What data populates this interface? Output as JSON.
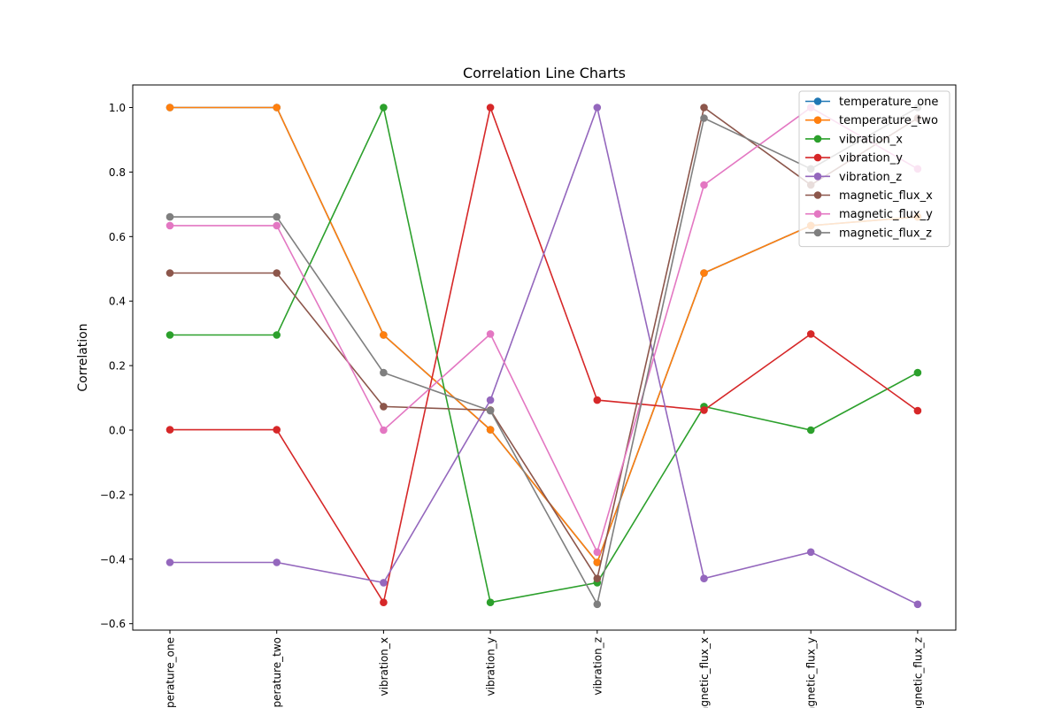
{
  "chart_data": {
    "type": "line",
    "title": "Correlation Line Charts",
    "xlabel": "",
    "ylabel": "Correlation",
    "categories": [
      "temperature_one",
      "temperature_two",
      "vibration_x",
      "vibration_y",
      "vibration_z",
      "magnetic_flux_x",
      "magnetic_flux_y",
      "magnetic_flux_z"
    ],
    "ylim": [
      -0.62,
      1.07
    ],
    "yticks": [
      -0.6,
      -0.4,
      -0.2,
      0.0,
      0.2,
      0.4,
      0.6,
      0.8,
      1.0
    ],
    "ytick_labels": [
      "−0.6",
      "−0.4",
      "−0.2",
      "0.0",
      "0.2",
      "0.4",
      "0.6",
      "0.8",
      "1.0"
    ],
    "grid": false,
    "legend_position": "top-right",
    "marker": "circle",
    "series": [
      {
        "name": "temperature_one",
        "color": "#1f77b4",
        "values": [
          1.0,
          1.0,
          0.295,
          0.001,
          -0.41,
          0.487,
          0.634,
          0.661
        ]
      },
      {
        "name": "temperature_two",
        "color": "#ff7f0e",
        "values": [
          1.0,
          1.0,
          0.295,
          0.001,
          -0.41,
          0.487,
          0.634,
          0.661
        ]
      },
      {
        "name": "vibration_x",
        "color": "#2ca02c",
        "values": [
          0.295,
          0.295,
          1.0,
          -0.534,
          -0.473,
          0.073,
          0.0,
          0.178
        ]
      },
      {
        "name": "vibration_y",
        "color": "#d62728",
        "values": [
          0.001,
          0.001,
          -0.534,
          1.0,
          0.093,
          0.062,
          0.298,
          0.06
        ]
      },
      {
        "name": "vibration_z",
        "color": "#9467bd",
        "values": [
          -0.41,
          -0.41,
          -0.473,
          0.093,
          1.0,
          -0.46,
          -0.378,
          -0.54
        ]
      },
      {
        "name": "magnetic_flux_x",
        "color": "#8c564b",
        "values": [
          0.487,
          0.487,
          0.073,
          0.062,
          -0.46,
          1.0,
          0.76,
          0.967
        ]
      },
      {
        "name": "magnetic_flux_y",
        "color": "#e377c2",
        "values": [
          0.634,
          0.634,
          0.0,
          0.298,
          -0.378,
          0.76,
          1.0,
          0.81
        ]
      },
      {
        "name": "magnetic_flux_z",
        "color": "#7f7f7f",
        "values": [
          0.661,
          0.661,
          0.178,
          0.06,
          -0.54,
          0.967,
          0.81,
          1.0
        ]
      }
    ]
  }
}
